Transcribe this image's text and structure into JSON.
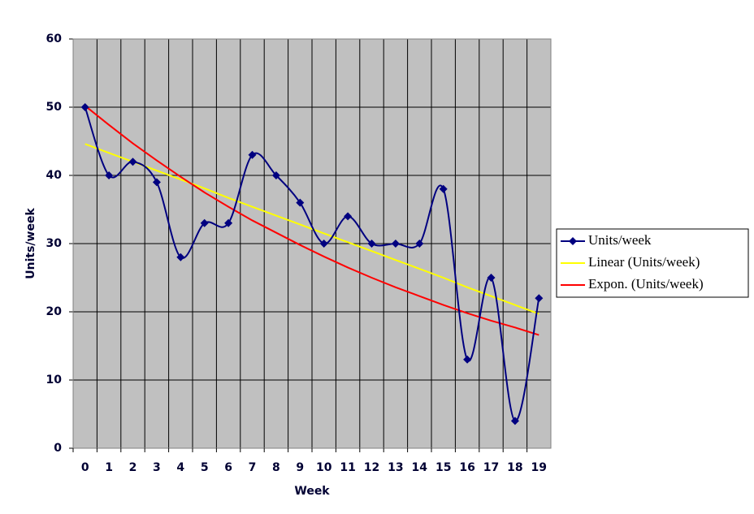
{
  "chart_data": {
    "type": "line",
    "x_label": "Week",
    "y_label": "Units/week",
    "categories": [
      "0",
      "1",
      "2",
      "3",
      "4",
      "5",
      "6",
      "7",
      "8",
      "9",
      "10",
      "11",
      "12",
      "13",
      "14",
      "15",
      "16",
      "17",
      "18",
      "19"
    ],
    "series": [
      {
        "name": "Units/week",
        "color": "#000080",
        "smooth": true,
        "marker": "diamond",
        "values": [
          50,
          40,
          42,
          39,
          28,
          33,
          33,
          43,
          40,
          36,
          30,
          34,
          30,
          30,
          30,
          38,
          13,
          25,
          4,
          22
        ]
      },
      {
        "name": "Linear (Units/week)",
        "color": "#ffff00",
        "values": [
          44.6,
          43.3,
          42.0,
          40.7,
          39.4,
          38.1,
          36.7,
          35.4,
          34.1,
          32.8,
          31.5,
          30.2,
          28.9,
          27.6,
          26.3,
          25.0,
          23.6,
          22.3,
          21.0,
          19.7
        ]
      },
      {
        "name": "Expon. (Units/week)",
        "color": "#ff0000",
        "values": [
          50.2,
          47.4,
          44.7,
          42.2,
          39.8,
          37.5,
          35.4,
          33.4,
          31.6,
          29.8,
          28.1,
          26.5,
          25.0,
          23.6,
          22.3,
          21.0,
          19.8,
          18.7,
          17.7,
          16.6
        ]
      }
    ],
    "ylim": [
      0,
      60
    ],
    "yticks": [
      0,
      10,
      20,
      30,
      40,
      50,
      60
    ],
    "grid": true,
    "legend": "right"
  }
}
